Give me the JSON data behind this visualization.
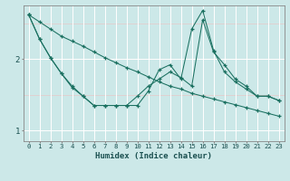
{
  "xlabel": "Humidex (Indice chaleur)",
  "bg_color": "#cce8e8",
  "grid_color": "#ffffff",
  "line_color": "#1a7060",
  "xlim": [
    -0.5,
    23.5
  ],
  "ylim": [
    0.85,
    2.75
  ],
  "yticks": [
    1,
    2
  ],
  "xticks": [
    0,
    1,
    2,
    3,
    4,
    5,
    6,
    7,
    8,
    9,
    10,
    11,
    12,
    13,
    14,
    15,
    16,
    17,
    18,
    19,
    20,
    21,
    22,
    23
  ],
  "line1_x": [
    0,
    1,
    2,
    3,
    4,
    5,
    6,
    7,
    8,
    9,
    10,
    11,
    12,
    13,
    14,
    15,
    16,
    17,
    18,
    19,
    20,
    21,
    22,
    23
  ],
  "line1_y": [
    2.62,
    2.28,
    2.02,
    1.8,
    1.62,
    1.48,
    1.35,
    1.35,
    1.35,
    1.35,
    1.48,
    1.62,
    1.72,
    1.82,
    1.74,
    1.62,
    2.55,
    2.1,
    1.92,
    1.72,
    1.62,
    1.48,
    1.48,
    1.42
  ],
  "line2_x": [
    0,
    1,
    2,
    3,
    4,
    5,
    6,
    7,
    8,
    9,
    10,
    11,
    12,
    13,
    14,
    15,
    16,
    17,
    18,
    19,
    20,
    21,
    22,
    23
  ],
  "line2_y": [
    2.62,
    2.52,
    2.42,
    2.32,
    2.25,
    2.18,
    2.1,
    2.02,
    1.95,
    1.88,
    1.82,
    1.75,
    1.68,
    1.62,
    1.58,
    1.52,
    1.48,
    1.44,
    1.4,
    1.36,
    1.32,
    1.28,
    1.24,
    1.2
  ],
  "line3_x": [
    0,
    1,
    2,
    3,
    4,
    5,
    6,
    7,
    8,
    9,
    10,
    11,
    12,
    13,
    14,
    15,
    16,
    17,
    18,
    19,
    20,
    21,
    22,
    23
  ],
  "line3_y": [
    2.62,
    2.28,
    2.02,
    1.8,
    1.6,
    1.48,
    1.35,
    1.35,
    1.35,
    1.35,
    1.35,
    1.55,
    1.85,
    1.92,
    1.72,
    2.42,
    2.68,
    2.12,
    1.82,
    1.68,
    1.58,
    1.48,
    1.48,
    1.42
  ]
}
